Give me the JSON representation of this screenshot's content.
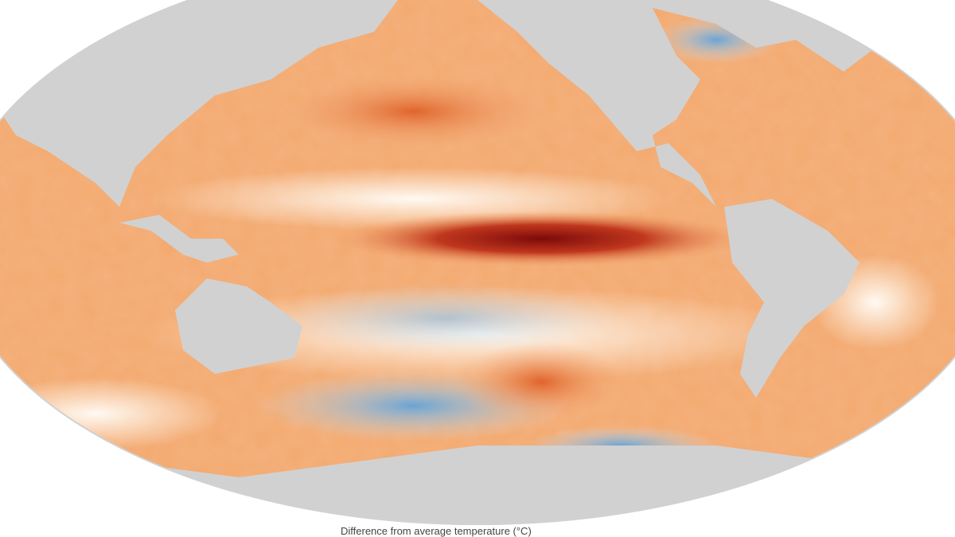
{
  "map": {
    "type": "sea surface temperature anomaly map",
    "projection": "elliptical world map centered on Pacific",
    "colors": {
      "land": "#d1d1d1",
      "warm_strong": "#8b0a0a",
      "warm": "#e8692e",
      "warm_light": "#f8c79a",
      "neutral": "#fdf6ee",
      "cool": "#9cc3e4",
      "cool_strong": "#2a78b8"
    }
  },
  "legend": {
    "title": "Difference from average temperature (°C)"
  }
}
